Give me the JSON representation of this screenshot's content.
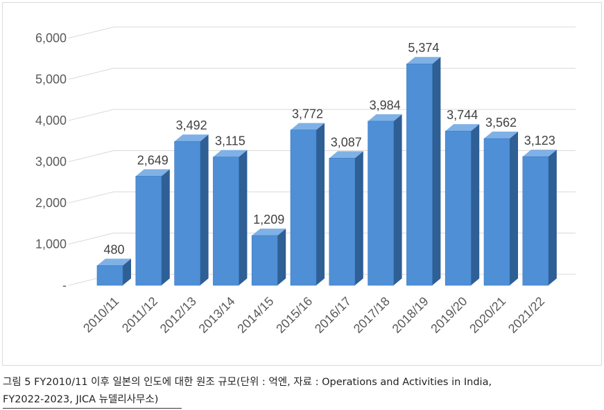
{
  "chart_data": {
    "type": "bar",
    "categories": [
      "2010/11",
      "2011/12",
      "2012/13",
      "2013/14",
      "2014/15",
      "2015/16",
      "2016/17",
      "2017/18",
      "2018/19",
      "2019/20",
      "2020/21",
      "2021/22"
    ],
    "values": [
      480,
      2649,
      3492,
      3115,
      1209,
      3772,
      3087,
      3984,
      5374,
      3744,
      3562,
      3123
    ],
    "value_labels": [
      "480",
      "2,649",
      "3,492",
      "3,115",
      "1,209",
      "3,772",
      "3,087",
      "3,984",
      "5,374",
      "3,744",
      "3,562",
      "3,123"
    ],
    "y_ticks": [
      "-",
      "1,000",
      "2,000",
      "3,000",
      "4,000",
      "5,000",
      "6,000"
    ],
    "ylim": [
      0,
      6000
    ],
    "grid": true,
    "style": "3d-column",
    "bar_color": "#4f8fd6"
  },
  "caption": {
    "line1": "그림 5 FY2010/11 이후 일본의 인도에 대한 원조 규모(단위 : 억엔, 자료 : Operations and Activities in India,",
    "line2": "FY2022-2023, JICA 뉴델리사무소)"
  }
}
